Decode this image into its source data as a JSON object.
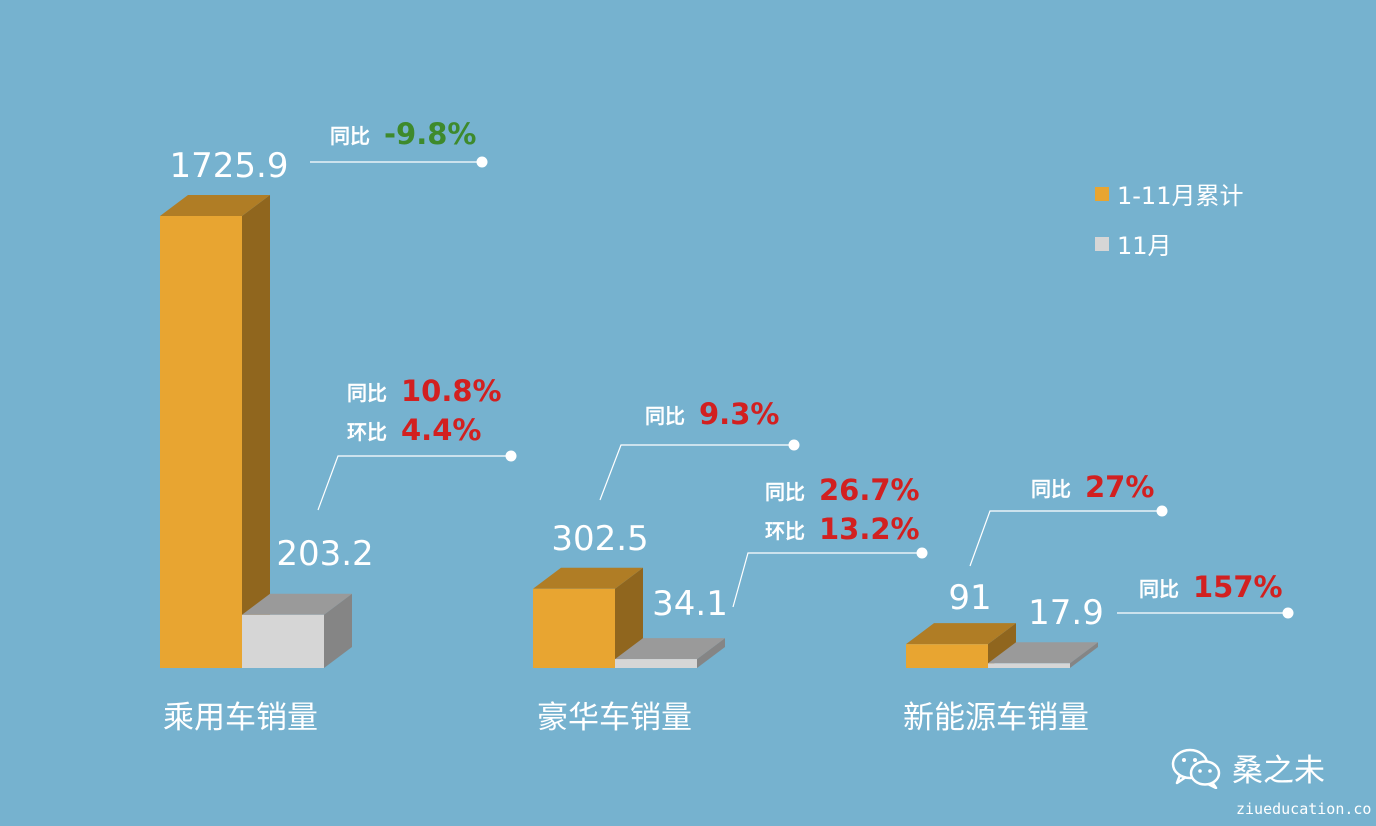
{
  "colors": {
    "background": "#76b2cf",
    "accumulated": "#e8a531",
    "month": "#d6d6d6",
    "positive": "#d22020",
    "negative": "#3e8a2c"
  },
  "legend": [
    {
      "label": "1-11月累计",
      "color": "#e8a531"
    },
    {
      "label": "11月",
      "color": "#d6d6d6"
    }
  ],
  "chart_data": {
    "type": "bar",
    "categories": [
      "乘用车销量",
      "豪华车销量",
      "新能源车销量"
    ],
    "series": [
      {
        "name": "1-11月累计",
        "values": [
          1725.9,
          302.5,
          91
        ]
      },
      {
        "name": "11月",
        "values": [
          203.2,
          34.1,
          17.9
        ]
      }
    ],
    "value_labels": [
      [
        "1725.9",
        "302.5",
        "91"
      ],
      [
        "203.2",
        "34.1",
        "17.9"
      ]
    ],
    "annotations": [
      {
        "items": [
          {
            "k": "同比",
            "v": "-9.8%",
            "tone": "negative"
          }
        ]
      },
      {
        "items": [
          {
            "k": "同比",
            "v": "10.8%",
            "tone": "positive"
          },
          {
            "k": "环比",
            "v": "4.4%",
            "tone": "positive"
          }
        ]
      },
      {
        "items": [
          {
            "k": "同比",
            "v": "9.3%",
            "tone": "positive"
          }
        ]
      },
      {
        "items": [
          {
            "k": "同比",
            "v": "26.7%",
            "tone": "positive"
          },
          {
            "k": "环比",
            "v": "13.2%",
            "tone": "positive"
          }
        ]
      },
      {
        "items": [
          {
            "k": "同比",
            "v": "27%",
            "tone": "positive"
          }
        ]
      },
      {
        "items": [
          {
            "k": "同比",
            "v": "157%",
            "tone": "positive"
          }
        ]
      }
    ],
    "grid": false,
    "legend_position": "top-right"
  },
  "brand": {
    "name": "桑之未",
    "icon": "wechat-icon"
  },
  "watermark": "ziueducation.co"
}
